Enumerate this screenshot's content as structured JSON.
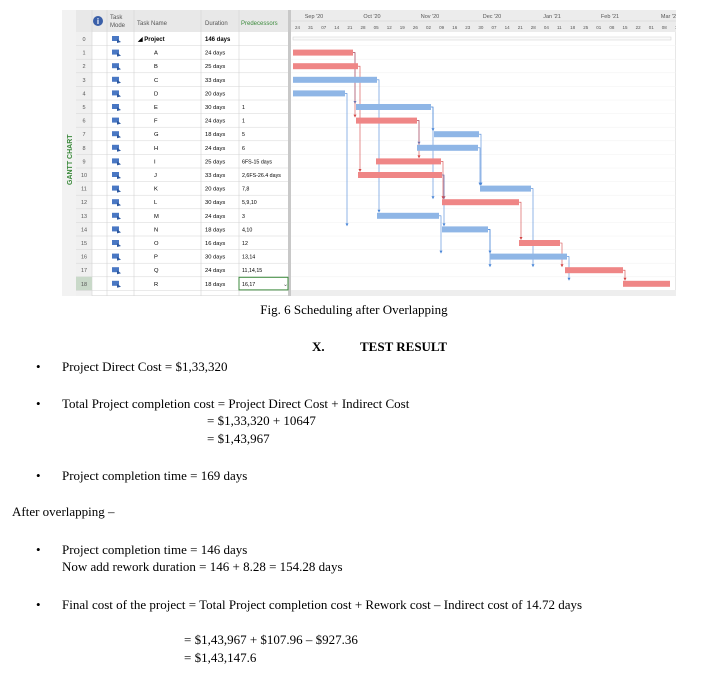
{
  "gantt": {
    "side_label": "GANTT CHART",
    "headers": {
      "task_mode": [
        "Task",
        "Mode"
      ],
      "task_name": "Task Name",
      "duration": "Duration",
      "predecessors": "Predecessors"
    },
    "months": [
      "Sep '20",
      "Oct '20",
      "Nov '20",
      "Dec '20",
      "Jan '21",
      "Feb '21",
      "Mar '21"
    ],
    "days": [
      "24",
      "31",
      "07",
      "14",
      "21",
      "28",
      "05",
      "12",
      "19",
      "26",
      "02",
      "09",
      "16",
      "23",
      "30",
      "07",
      "14",
      "21",
      "28",
      "04",
      "11",
      "18",
      "25",
      "01",
      "08",
      "15",
      "22",
      "01",
      "08",
      "15"
    ],
    "rows": [
      {
        "id": "0",
        "name": "Project",
        "dur": "146 days",
        "pred": ""
      },
      {
        "id": "1",
        "name": "A",
        "dur": "24 days",
        "pred": ""
      },
      {
        "id": "2",
        "name": "B",
        "dur": "25 days",
        "pred": ""
      },
      {
        "id": "3",
        "name": "C",
        "dur": "33 days",
        "pred": ""
      },
      {
        "id": "4",
        "name": "D",
        "dur": "20 days",
        "pred": ""
      },
      {
        "id": "5",
        "name": "E",
        "dur": "30 days",
        "pred": "1"
      },
      {
        "id": "6",
        "name": "F",
        "dur": "24 days",
        "pred": "1"
      },
      {
        "id": "7",
        "name": "G",
        "dur": "18 days",
        "pred": "5"
      },
      {
        "id": "8",
        "name": "H",
        "dur": "24 days",
        "pred": "6"
      },
      {
        "id": "9",
        "name": "I",
        "dur": "25 days",
        "pred": "6FS-15 days"
      },
      {
        "id": "10",
        "name": "J",
        "dur": "33 days",
        "pred": "2,6FS-26.4 days"
      },
      {
        "id": "11",
        "name": "K",
        "dur": "20 days",
        "pred": "7,8"
      },
      {
        "id": "12",
        "name": "L",
        "dur": "30 days",
        "pred": "5,9,10"
      },
      {
        "id": "13",
        "name": "M",
        "dur": "24 days",
        "pred": "3"
      },
      {
        "id": "14",
        "name": "N",
        "dur": "18 days",
        "pred": "4,10"
      },
      {
        "id": "15",
        "name": "O",
        "dur": "16 days",
        "pred": "12"
      },
      {
        "id": "16",
        "name": "P",
        "dur": "30 days",
        "pred": "13,14"
      },
      {
        "id": "17",
        "name": "Q",
        "dur": "24 days",
        "pred": "11,14,15"
      },
      {
        "id": "18",
        "name": "R",
        "dur": "18 days",
        "pred": "16,17"
      }
    ],
    "colors": {
      "critical": "#ef8686",
      "normal": "#8fb6e6",
      "link": "#4a86d8",
      "critical_link": "#d34545",
      "header_bg": "#e8e8e8",
      "grid": "#d4d4d4"
    }
  },
  "caption": "Fig. 6 Scheduling after Overlapping",
  "section": {
    "number": "X.",
    "title": "TEST RESULT"
  },
  "lines": {
    "direct_cost": "Project Direct Cost = $1,33,320",
    "total_cost": "Total Project completion cost = Project Direct Cost + Indirect Cost",
    "total_cost_calc1": "= $1,33,320 + 10647",
    "total_cost_calc2": "= $1,43,967",
    "time_before": "Project completion time = 169 days",
    "after": "After overlapping –",
    "time_after": "Project completion time = 146 days",
    "rework": "Now add rework duration = 146 + 8.28 = 154.28 days",
    "final_cost": "Final cost of the project = Total Project completion cost + Rework cost – Indirect cost of 14.72 days",
    "final_calc1": "= $1,43,967 + $107.96 – $927.36",
    "final_calc2": "= $1,43,147.6"
  }
}
